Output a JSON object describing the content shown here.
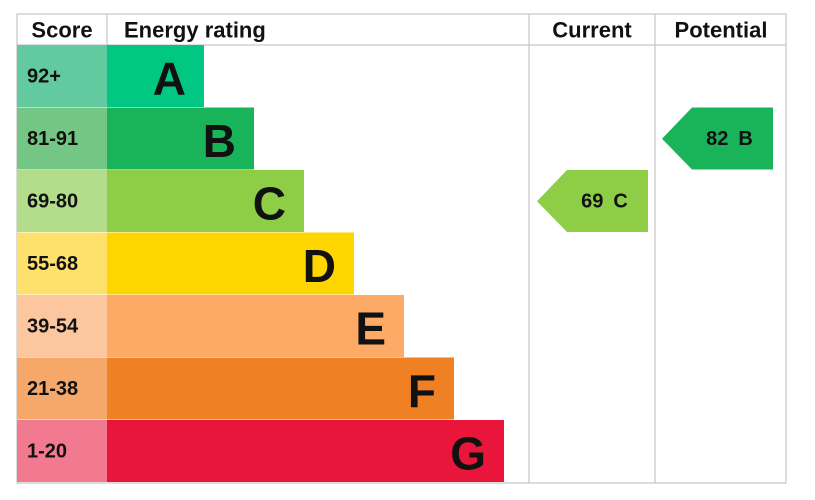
{
  "header": {
    "score": "Score",
    "rating": "Energy rating",
    "current": "Current",
    "potential": "Potential"
  },
  "bands": [
    {
      "score": "92+",
      "letter": "A",
      "color": "#00c781",
      "score_color": "#63c99f"
    },
    {
      "score": "81-91",
      "letter": "B",
      "color": "#19b459",
      "score_color": "#74c684"
    },
    {
      "score": "69-80",
      "letter": "C",
      "color": "#8dce46",
      "score_color": "#b3dd8b"
    },
    {
      "score": "55-68",
      "letter": "D",
      "color": "#ffd500",
      "score_color": "#fde16b"
    },
    {
      "score": "39-54",
      "letter": "E",
      "color": "#fcaa65",
      "score_color": "#fcc79f"
    },
    {
      "score": "21-38",
      "letter": "F",
      "color": "#ef8023",
      "score_color": "#f6a86a"
    },
    {
      "score": "1-20",
      "letter": "G",
      "color": "#e9153b",
      "score_color": "#f17a91"
    }
  ],
  "current": {
    "value": 69,
    "letter": "C"
  },
  "potential": {
    "value": 82,
    "letter": "B"
  }
}
